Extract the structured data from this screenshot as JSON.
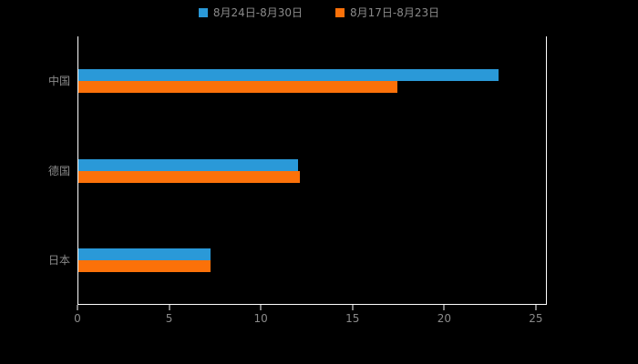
{
  "chart_data": {
    "type": "bar",
    "orientation": "horizontal",
    "title": "",
    "categories": [
      "中国",
      "德国",
      "日本"
    ],
    "series": [
      {
        "name": "8月24日-8月30日",
        "color": "#2A99D8",
        "values": [
          22.9,
          12.0,
          7.2
        ]
      },
      {
        "name": "8月17日-8月23日",
        "color": "#FB7109",
        "values": [
          17.4,
          12.1,
          7.2
        ]
      }
    ],
    "xlim": [
      0,
      25.6
    ],
    "xticks": [
      0,
      5,
      10,
      15,
      20,
      25
    ],
    "legend_position": "top",
    "grid": false,
    "colors": {
      "background": "#000000",
      "text": "#8A8A8A",
      "axis": "#FFFFFF"
    }
  }
}
